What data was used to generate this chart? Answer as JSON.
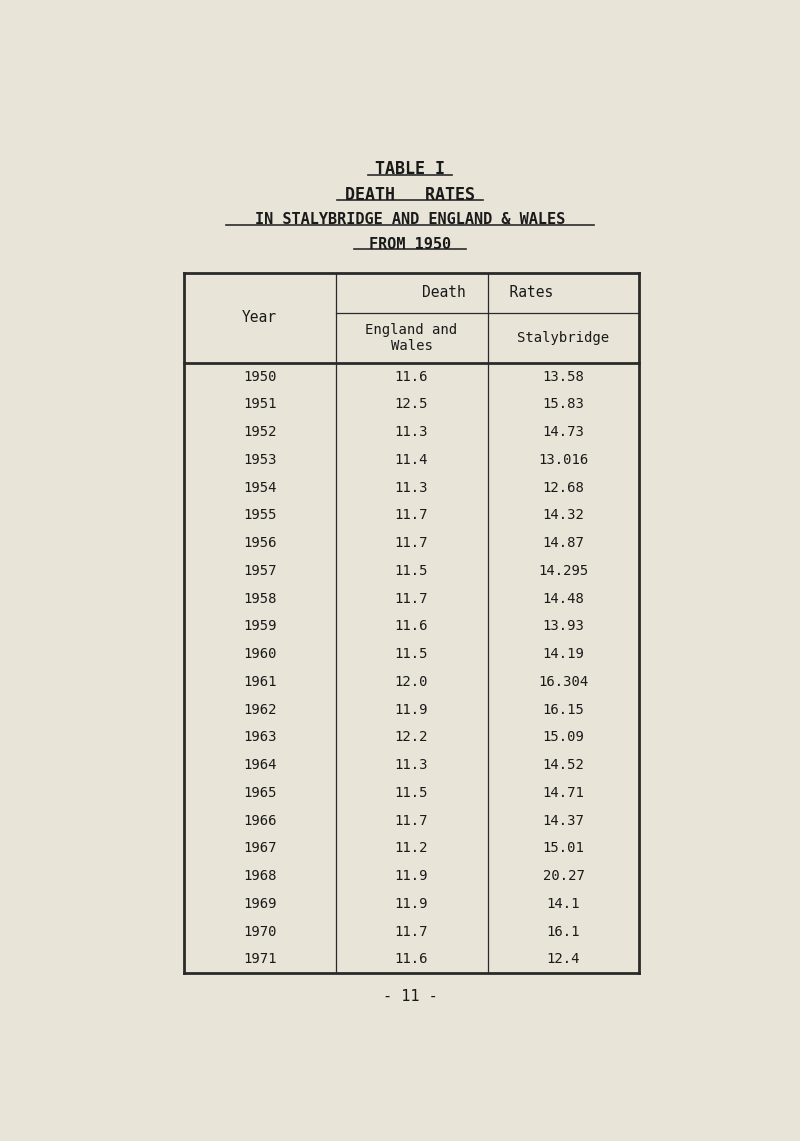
{
  "title1": "TABLE I",
  "title2": "DEATH   RATES",
  "title3": "IN STALYBRIDGE AND ENGLAND & WALES",
  "title4": "FROM 1950",
  "col_header_top": "Death     Rates",
  "col1_header": "Year",
  "col2_header": "England and\nWales",
  "col3_header": "Stalybridge",
  "years": [
    1950,
    1951,
    1952,
    1953,
    1954,
    1955,
    1956,
    1957,
    1958,
    1959,
    1960,
    1961,
    1962,
    1963,
    1964,
    1965,
    1966,
    1967,
    1968,
    1969,
    1970,
    1971
  ],
  "england_wales": [
    "11.6",
    "12.5",
    "11.3",
    "11.4",
    "11.3",
    "11.7",
    "11.7",
    "11.5",
    "11.7",
    "11.6",
    "11.5",
    "12.0",
    "11.9",
    "12.2",
    "11.3",
    "11.5",
    "11.7",
    "11.2",
    "11.9",
    "11.9",
    "11.7",
    "11.6"
  ],
  "stalybridge": [
    "13.58",
    "15.83",
    "14.73",
    "13.016",
    "12.68",
    "14.32",
    "14.87",
    "14.295",
    "14.48",
    "13.93",
    "14.19",
    "16.304",
    "16.15",
    "15.09",
    "14.52",
    "14.71",
    "14.37",
    "15.01",
    "20.27",
    "14.1",
    "16.1",
    "12.4"
  ],
  "footer": "- 11 -",
  "bg_color": "#e8e4d8",
  "text_color": "#1a1a1a",
  "table_line_color": "#2a2a2a"
}
